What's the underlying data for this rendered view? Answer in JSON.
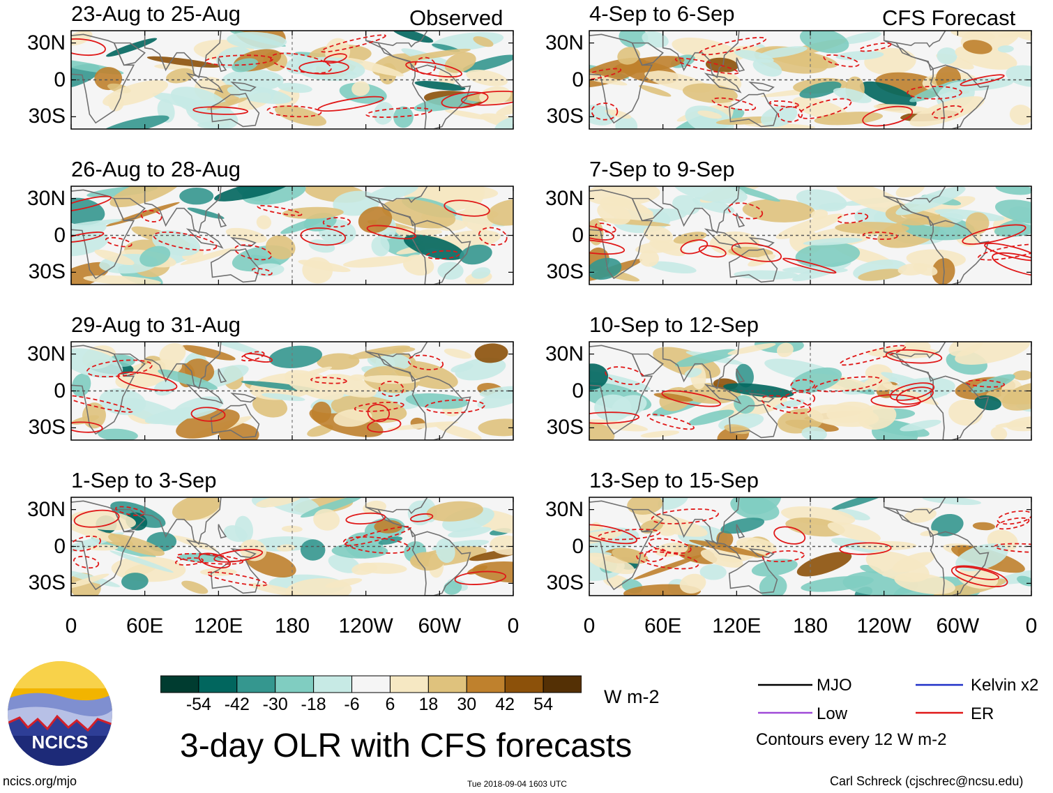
{
  "chart_data": {
    "type": "heatmap",
    "title": "3-day OLR with CFS forecasts",
    "panel_groups": {
      "left_tag": "Observed",
      "right_tag": "CFS Forecast"
    },
    "panels_left": [
      {
        "title": "23-Aug to 25-Aug",
        "row": 0
      },
      {
        "title": "26-Aug to 28-Aug",
        "row": 1
      },
      {
        "title": "29-Aug to 31-Aug",
        "row": 2
      },
      {
        "title": "1-Sep to 3-Sep",
        "row": 3
      }
    ],
    "panels_right": [
      {
        "title": "4-Sep to 6-Sep",
        "row": 0
      },
      {
        "title": "7-Sep to 9-Sep",
        "row": 1
      },
      {
        "title": "10-Sep to 12-Sep",
        "row": 2
      },
      {
        "title": "13-Sep to 15-Sep",
        "row": 3
      }
    ],
    "lat_ticks": [
      "30N",
      "0",
      "30S"
    ],
    "lat_values": [
      30,
      0,
      -30
    ],
    "ylim": [
      -40,
      40
    ],
    "lon_ticks": [
      "0",
      "60E",
      "120E",
      "180",
      "120W",
      "60W",
      "0"
    ],
    "lon_values": [
      0,
      60,
      120,
      180,
      240,
      300,
      360
    ],
    "xlim": [
      0,
      360
    ],
    "colorbar": {
      "units": "W m-2",
      "labels": [
        "-54",
        "-42",
        "-30",
        "-18",
        "-6",
        "6",
        "18",
        "30",
        "42",
        "54"
      ],
      "colors": [
        "#003c30",
        "#01665e",
        "#35978f",
        "#80cdc1",
        "#c7eae5",
        "#f5f5f5",
        "#f6e8c3",
        "#dfc27d",
        "#bf812d",
        "#8c510a",
        "#543005"
      ]
    },
    "legend": [
      {
        "label": "MJO",
        "color": "#000000"
      },
      {
        "label": "Kelvin x2",
        "color": "#1f30c8"
      },
      {
        "label": "Low",
        "color": "#a04ad8"
      },
      {
        "label": "ER",
        "color": "#e01818"
      }
    ],
    "contour_note": "Contours every 12 W m-2"
  },
  "logo": {
    "text": "NCICS"
  },
  "footer": {
    "url": "ncics.org/mjo",
    "timestamp": "Tue 2018-09-04 1603 UTC",
    "author": "Carl Schreck (cjschrec@ncsu.edu)"
  }
}
